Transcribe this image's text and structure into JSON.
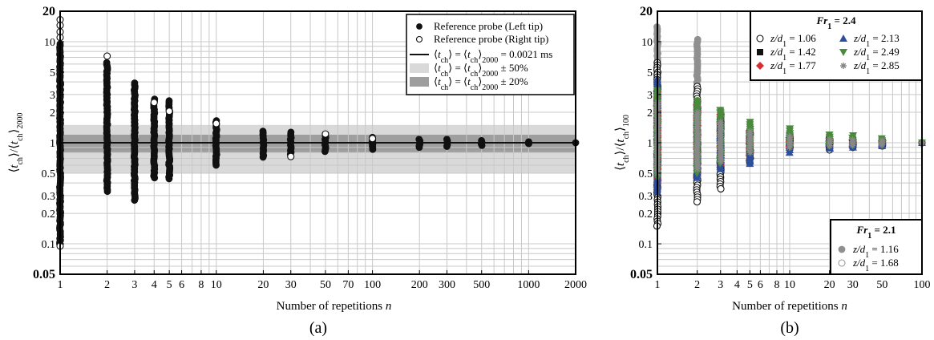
{
  "chart_data": [
    {
      "type": "scatter",
      "panel_label": "(a)",
      "xlabel": "Number of repetitions  n",
      "ylabel": "⟨t_ch⟩/⟨t_ch⟩_2000",
      "xscale": "log",
      "yscale": "log",
      "xlim": [
        1,
        2000
      ],
      "ylim": [
        0.05,
        20
      ],
      "grid": true,
      "legend_placement": "top-right",
      "x_ticks": [
        {
          "v": 1,
          "label": "1"
        },
        {
          "v": 2,
          "label": "2"
        },
        {
          "v": 3,
          "label": "3"
        },
        {
          "v": 4,
          "label": "4"
        },
        {
          "v": 5,
          "label": "5"
        },
        {
          "v": 6,
          "label": "6"
        },
        {
          "v": 8,
          "label": "8"
        },
        {
          "v": 10,
          "label": "10"
        },
        {
          "v": 20,
          "label": "20"
        },
        {
          "v": 30,
          "label": "30"
        },
        {
          "v": 50,
          "label": "50"
        },
        {
          "v": 70,
          "label": "70"
        },
        {
          "v": 100,
          "label": "100"
        },
        {
          "v": 200,
          "label": "200"
        },
        {
          "v": 300,
          "label": "300"
        },
        {
          "v": 500,
          "label": "500"
        },
        {
          "v": 1000,
          "label": "1000"
        },
        {
          "v": 2000,
          "label": "2000"
        }
      ],
      "y_ticks": [
        {
          "v": 0.05,
          "label": "0.05",
          "bold": true
        },
        {
          "v": 0.1,
          "label": "0.1"
        },
        {
          "v": 0.2,
          "label": "0.2"
        },
        {
          "v": 0.3,
          "label": "0.3"
        },
        {
          "v": 0.5,
          "label": "0.5"
        },
        {
          "v": 1,
          "label": "1"
        },
        {
          "v": 2,
          "label": "2"
        },
        {
          "v": 3,
          "label": "3"
        },
        {
          "v": 5,
          "label": "5"
        },
        {
          "v": 10,
          "label": "10"
        },
        {
          "v": 20,
          "label": "20",
          "bold": true
        }
      ],
      "bands": [
        {
          "name": "⟨t_ch⟩ = ⟨t_ch⟩_2000 ± 50%",
          "low": 0.5,
          "high": 1.5,
          "color": "#d9d9d9"
        },
        {
          "name": "⟨t_ch⟩ = ⟨t_ch⟩_2000 ± 20%",
          "low": 0.8,
          "high": 1.2,
          "color": "#9e9e9e"
        }
      ],
      "reference_line": {
        "name": "⟨t_ch⟩ = ⟨t_ch⟩_2000 = 0.0021 ms",
        "y": 1
      },
      "series": [
        {
          "name": "Reference probe (Left tip)",
          "marker": "filled-circle",
          "color": "#111111",
          "ranges": [
            {
              "x": 1,
              "min": 0.1,
              "max": 9.5
            },
            {
              "x": 2,
              "min": 0.33,
              "max": 6.2
            },
            {
              "x": 3,
              "min": 0.27,
              "max": 3.9
            },
            {
              "x": 4,
              "min": 0.45,
              "max": 2.7
            },
            {
              "x": 5,
              "min": 0.44,
              "max": 2.6
            },
            {
              "x": 10,
              "min": 0.6,
              "max": 1.65
            },
            {
              "x": 20,
              "min": 0.72,
              "max": 1.3
            },
            {
              "x": 30,
              "min": 0.77,
              "max": 1.27
            },
            {
              "x": 50,
              "min": 0.82,
              "max": 1.17
            },
            {
              "x": 100,
              "min": 0.86,
              "max": 1.13
            },
            {
              "x": 200,
              "min": 0.9,
              "max": 1.08
            },
            {
              "x": 300,
              "min": 0.92,
              "max": 1.08
            },
            {
              "x": 500,
              "min": 0.94,
              "max": 1.05
            },
            {
              "x": 1000,
              "min": 0.98,
              "max": 1.02
            },
            {
              "x": 2000,
              "min": 1,
              "max": 1
            }
          ]
        },
        {
          "name": "Reference probe (Right tip)",
          "marker": "open-circle",
          "color": "#111111",
          "points": [
            {
              "x": 1,
              "y": 16.5
            },
            {
              "x": 1,
              "y": 14.5
            },
            {
              "x": 1,
              "y": 12.5
            },
            {
              "x": 1,
              "y": 11
            },
            {
              "x": 1,
              "y": 0.095
            },
            {
              "x": 2,
              "y": 7.2
            },
            {
              "x": 4,
              "y": 2.5
            },
            {
              "x": 5,
              "y": 2.05
            },
            {
              "x": 10,
              "y": 1.55
            },
            {
              "x": 30,
              "y": 0.73
            },
            {
              "x": 50,
              "y": 1.22
            },
            {
              "x": 100,
              "y": 1.1
            }
          ]
        }
      ]
    },
    {
      "type": "scatter",
      "panel_label": "(b)",
      "xlabel": "Number of repetitions  n",
      "ylabel": "⟨t_ch⟩/⟨t_ch⟩_100",
      "xscale": "log",
      "yscale": "log",
      "xlim": [
        1,
        100
      ],
      "ylim": [
        0.05,
        20
      ],
      "grid": true,
      "x_ticks": [
        {
          "v": 1,
          "label": "1"
        },
        {
          "v": 2,
          "label": "2"
        },
        {
          "v": 3,
          "label": "3"
        },
        {
          "v": 4,
          "label": "4"
        },
        {
          "v": 5,
          "label": "5"
        },
        {
          "v": 6,
          "label": "6"
        },
        {
          "v": 8,
          "label": "8"
        },
        {
          "v": 10,
          "label": "10"
        },
        {
          "v": 20,
          "label": "20"
        },
        {
          "v": 30,
          "label": "30"
        },
        {
          "v": 50,
          "label": "50"
        },
        {
          "v": 100,
          "label": "100"
        }
      ],
      "y_ticks": [
        {
          "v": 0.05,
          "label": "0.05",
          "bold": true
        },
        {
          "v": 0.1,
          "label": "0.1"
        },
        {
          "v": 0.2,
          "label": "0.2"
        },
        {
          "v": 0.3,
          "label": "0.3"
        },
        {
          "v": 0.5,
          "label": "0.5"
        },
        {
          "v": 1,
          "label": "1"
        },
        {
          "v": 2,
          "label": "2"
        },
        {
          "v": 3,
          "label": "3"
        },
        {
          "v": 5,
          "label": "5"
        },
        {
          "v": 10,
          "label": "10"
        },
        {
          "v": 20,
          "label": "20",
          "bold": true
        }
      ],
      "legend_groups": [
        {
          "title_main": "Fr",
          "title_sub": "1",
          "title_value": " = 2.4",
          "placement": "top-right"
        },
        {
          "title_main": "Fr",
          "title_sub": "1",
          "title_value": " = 2.1",
          "placement": "bottom-right"
        }
      ],
      "series": [
        {
          "group": 0,
          "label_value": " = 1.06",
          "marker": "open-circle",
          "color": "#111111",
          "ranges": [
            {
              "x": 1,
              "min": 0.15,
              "max": 6.2
            },
            {
              "x": 2,
              "min": 0.26,
              "max": 3.6
            },
            {
              "x": 3,
              "min": 0.35,
              "max": 1.9
            },
            {
              "x": 5,
              "min": 0.63,
              "max": 1.3
            },
            {
              "x": 10,
              "min": 0.9,
              "max": 1.1
            },
            {
              "x": 20,
              "min": 0.85,
              "max": 1.05
            },
            {
              "x": 30,
              "min": 0.9,
              "max": 1.05
            },
            {
              "x": 50,
              "min": 0.93,
              "max": 1.05
            },
            {
              "x": 100,
              "min": 1,
              "max": 1
            }
          ]
        },
        {
          "group": 0,
          "label_value": " = 1.42",
          "marker": "filled-square",
          "color": "#111111",
          "ranges": [
            {
              "x": 1,
              "min": 0.4,
              "max": 3.0
            },
            {
              "x": 2,
              "min": 0.5,
              "max": 2.2
            },
            {
              "x": 3,
              "min": 0.6,
              "max": 1.6
            },
            {
              "x": 5,
              "min": 0.75,
              "max": 1.25
            },
            {
              "x": 10,
              "min": 0.9,
              "max": 1.15
            },
            {
              "x": 20,
              "min": 0.92,
              "max": 1.08
            },
            {
              "x": 30,
              "min": 0.93,
              "max": 1.07
            },
            {
              "x": 50,
              "min": 0.95,
              "max": 1.05
            },
            {
              "x": 100,
              "min": 1,
              "max": 1
            }
          ]
        },
        {
          "group": 0,
          "label_value": " = 1.77",
          "marker": "filled-diamond",
          "color": "#d32f2f",
          "ranges": [
            {
              "x": 1,
              "min": 0.4,
              "max": 3.2
            },
            {
              "x": 2,
              "min": 0.5,
              "max": 2.4
            },
            {
              "x": 3,
              "min": 0.6,
              "max": 1.9
            },
            {
              "x": 5,
              "min": 0.75,
              "max": 1.3
            },
            {
              "x": 10,
              "min": 0.88,
              "max": 1.15
            },
            {
              "x": 20,
              "min": 0.92,
              "max": 1.1
            },
            {
              "x": 30,
              "min": 0.93,
              "max": 1.08
            },
            {
              "x": 50,
              "min": 0.95,
              "max": 1.05
            },
            {
              "x": 100,
              "min": 1,
              "max": 1
            }
          ]
        },
        {
          "group": 0,
          "label_value": " = 2.13",
          "marker": "filled-triangle-up",
          "color": "#2e4f9e",
          "ranges": [
            {
              "x": 1,
              "min": 0.33,
              "max": 4.3
            },
            {
              "x": 2,
              "min": 0.45,
              "max": 2.5
            },
            {
              "x": 3,
              "min": 0.55,
              "max": 1.8
            },
            {
              "x": 5,
              "min": 0.62,
              "max": 1.4
            },
            {
              "x": 10,
              "min": 0.8,
              "max": 1.2
            },
            {
              "x": 20,
              "min": 0.88,
              "max": 1.1
            },
            {
              "x": 30,
              "min": 0.9,
              "max": 1.08
            },
            {
              "x": 50,
              "min": 0.93,
              "max": 1.05
            },
            {
              "x": 100,
              "min": 1,
              "max": 1
            }
          ]
        },
        {
          "group": 0,
          "label_value": " = 2.49",
          "marker": "filled-triangle-down",
          "color": "#4a8a3c",
          "ranges": [
            {
              "x": 1,
              "min": 0.45,
              "max": 3.3
            },
            {
              "x": 2,
              "min": 0.5,
              "max": 2.6
            },
            {
              "x": 3,
              "min": 0.62,
              "max": 2.1
            },
            {
              "x": 5,
              "min": 0.8,
              "max": 1.6
            },
            {
              "x": 10,
              "min": 0.9,
              "max": 1.38
            },
            {
              "x": 20,
              "min": 0.93,
              "max": 1.2
            },
            {
              "x": 30,
              "min": 0.95,
              "max": 1.18
            },
            {
              "x": 50,
              "min": 0.95,
              "max": 1.1
            },
            {
              "x": 100,
              "min": 1,
              "max": 1
            }
          ]
        },
        {
          "group": 0,
          "label_value": " = 2.85",
          "marker": "asterisk",
          "color": "#888888",
          "ranges": [
            {
              "x": 1,
              "min": 0.5,
              "max": 2.5
            },
            {
              "x": 2,
              "min": 0.55,
              "max": 2.0
            },
            {
              "x": 3,
              "min": 0.65,
              "max": 1.6
            },
            {
              "x": 5,
              "min": 0.8,
              "max": 1.3
            },
            {
              "x": 10,
              "min": 0.9,
              "max": 1.15
            },
            {
              "x": 20,
              "min": 0.93,
              "max": 1.08
            },
            {
              "x": 30,
              "min": 0.94,
              "max": 1.07
            },
            {
              "x": 50,
              "min": 0.95,
              "max": 1.05
            },
            {
              "x": 100,
              "min": 1,
              "max": 1
            }
          ]
        },
        {
          "group": 1,
          "label_value": " = 1.16",
          "marker": "filled-circle",
          "color": "#8f8f8f",
          "ranges": [
            {
              "x": 1,
              "min": 0.3,
              "max": 14
            },
            {
              "x": 2,
              "min": 0.42,
              "max": 10.5
            },
            {
              "x": 3,
              "min": 0.45,
              "max": 2.1
            },
            {
              "x": 5,
              "min": 0.7,
              "max": 1.45
            },
            {
              "x": 10,
              "min": 0.85,
              "max": 1.25
            },
            {
              "x": 20,
              "min": 0.88,
              "max": 1.18
            },
            {
              "x": 30,
              "min": 0.9,
              "max": 1.1
            },
            {
              "x": 50,
              "min": 0.93,
              "max": 1.07
            },
            {
              "x": 100,
              "min": 1,
              "max": 1
            }
          ]
        },
        {
          "group": 1,
          "label_value": " = 1.68",
          "marker": "open-circle",
          "color": "#9a9a9a",
          "ranges": [
            {
              "x": 1,
              "min": 0.35,
              "max": 3.0
            },
            {
              "x": 2,
              "min": 0.4,
              "max": 2.2
            },
            {
              "x": 3,
              "min": 0.5,
              "max": 1.7
            },
            {
              "x": 5,
              "min": 0.75,
              "max": 1.3
            },
            {
              "x": 10,
              "min": 0.88,
              "max": 1.15
            },
            {
              "x": 20,
              "min": 0.9,
              "max": 1.08
            },
            {
              "x": 30,
              "min": 0.92,
              "max": 1.06
            },
            {
              "x": 50,
              "min": 0.94,
              "max": 1.05
            },
            {
              "x": 100,
              "min": 1,
              "max": 1
            }
          ]
        }
      ],
      "series_label_main": "z/d",
      "series_label_sub": "1"
    }
  ]
}
